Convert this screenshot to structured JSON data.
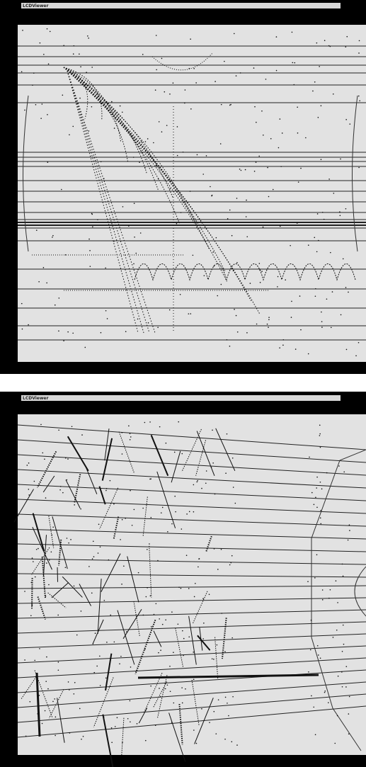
{
  "windows": [
    {
      "title": "LCDViewer"
    },
    {
      "title": "LCDViewer"
    }
  ]
}
